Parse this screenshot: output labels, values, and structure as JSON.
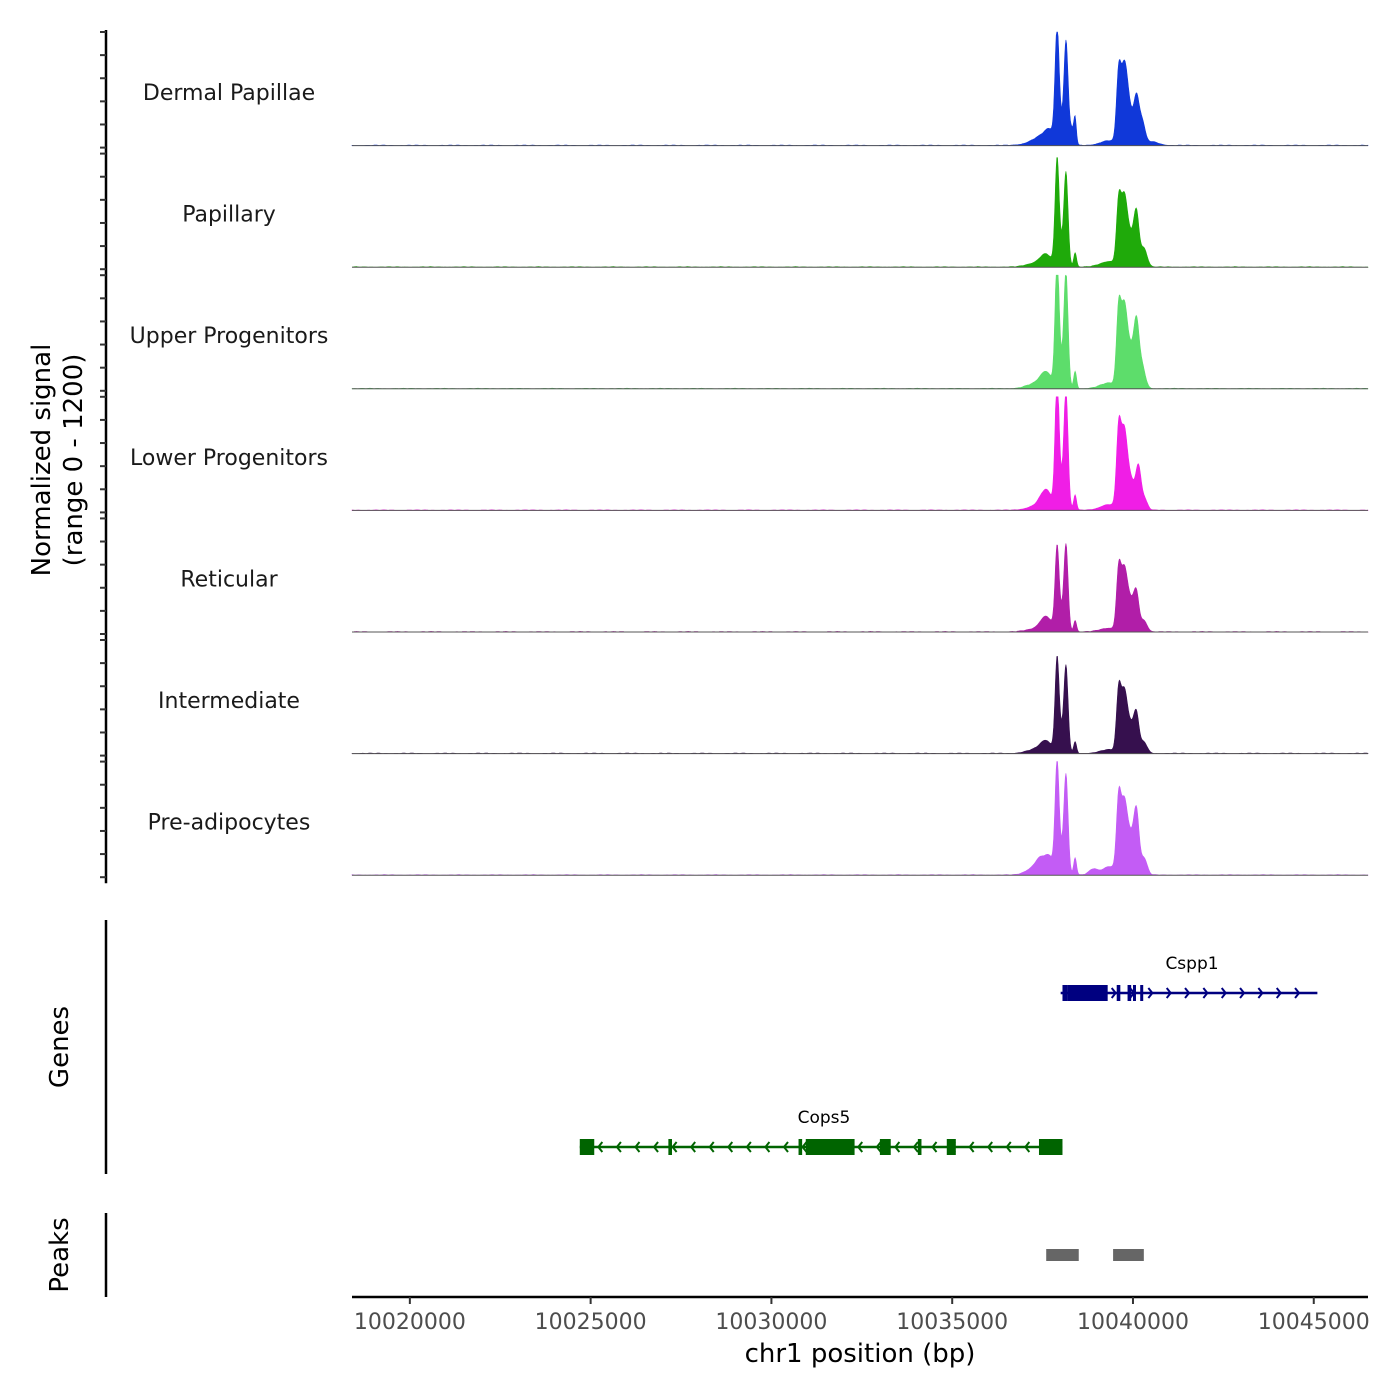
{
  "chart_data": {
    "type": "area",
    "chromosome": "chr1",
    "xlabel": "chr1 position (bp)",
    "ylabel_line1": "Normalized signal",
    "ylabel_line2": "(range 0 - 1200)",
    "ylim": [
      0,
      1200
    ],
    "xlim": [
      10018400,
      10046500
    ],
    "x_ticks": [
      10020000,
      10025000,
      10030000,
      10035000,
      10040000,
      10045000
    ],
    "x_tick_labels": [
      "10020000",
      "10025000",
      "10030000",
      "10035000",
      "10040000",
      "10045000"
    ],
    "series": [
      {
        "name": "Dermal Papillae",
        "color": "#1038d9",
        "peaks": [
          [
            10037200,
            20,
            280
          ],
          [
            10037400,
            40,
            220
          ],
          [
            10037600,
            70,
            200
          ],
          [
            10037700,
            90,
            120
          ],
          [
            10037900,
            1070,
            55
          ],
          [
            10038000,
            240,
            110
          ],
          [
            10038150,
            1000,
            55
          ],
          [
            10038300,
            170,
            70
          ],
          [
            10038400,
            250,
            35
          ],
          [
            10039350,
            50,
            250
          ],
          [
            10039600,
            640,
            60
          ],
          [
            10039750,
            700,
            90
          ],
          [
            10039900,
            350,
            120
          ],
          [
            10040100,
            420,
            70
          ],
          [
            10040250,
            240,
            80
          ],
          [
            10040500,
            40,
            200
          ]
        ]
      },
      {
        "name": "Papillary",
        "color": "#1faa0a",
        "peaks": [
          [
            10037300,
            40,
            250
          ],
          [
            10037600,
            120,
            160
          ],
          [
            10037900,
            1050,
            55
          ],
          [
            10038050,
            240,
            110
          ],
          [
            10038150,
            850,
            55
          ],
          [
            10038400,
            150,
            40
          ],
          [
            10039350,
            60,
            250
          ],
          [
            10039600,
            560,
            60
          ],
          [
            10039750,
            700,
            90
          ],
          [
            10039950,
            300,
            110
          ],
          [
            10040100,
            480,
            70
          ],
          [
            10040300,
            200,
            90
          ]
        ]
      },
      {
        "name": "Upper Progenitors",
        "color": "#5ddd6b",
        "peaks": [
          [
            10037300,
            50,
            250
          ],
          [
            10037600,
            160,
            160
          ],
          [
            10037900,
            1260,
            55
          ],
          [
            10038050,
            280,
            110
          ],
          [
            10038150,
            1050,
            55
          ],
          [
            10038400,
            180,
            40
          ],
          [
            10039350,
            60,
            250
          ],
          [
            10039600,
            700,
            60
          ],
          [
            10039750,
            820,
            90
          ],
          [
            10039950,
            380,
            110
          ],
          [
            10040100,
            560,
            70
          ],
          [
            10040250,
            240,
            90
          ]
        ]
      },
      {
        "name": "Lower Progenitors",
        "color": "#f01ee6",
        "peaks": [
          [
            10037300,
            40,
            250
          ],
          [
            10037600,
            200,
            160
          ],
          [
            10037900,
            1270,
            55
          ],
          [
            10038050,
            300,
            110
          ],
          [
            10038150,
            1080,
            55
          ],
          [
            10038400,
            160,
            40
          ],
          [
            10039350,
            60,
            250
          ],
          [
            10039600,
            720,
            60
          ],
          [
            10039750,
            800,
            90
          ],
          [
            10039950,
            300,
            110
          ],
          [
            10040150,
            400,
            70
          ],
          [
            10040300,
            130,
            90
          ]
        ]
      },
      {
        "name": "Reticular",
        "color": "#b11ea8",
        "peaks": [
          [
            10037300,
            30,
            250
          ],
          [
            10037600,
            150,
            160
          ],
          [
            10037900,
            820,
            55
          ],
          [
            10038050,
            200,
            110
          ],
          [
            10038150,
            800,
            55
          ],
          [
            10038400,
            120,
            40
          ],
          [
            10039350,
            40,
            250
          ],
          [
            10039600,
            550,
            60
          ],
          [
            10039750,
            620,
            90
          ],
          [
            10039950,
            300,
            110
          ],
          [
            10040100,
            320,
            70
          ],
          [
            10040300,
            120,
            90
          ]
        ]
      },
      {
        "name": "Intermediate",
        "color": "#36104e",
        "peaks": [
          [
            10037300,
            40,
            250
          ],
          [
            10037600,
            120,
            160
          ],
          [
            10037900,
            920,
            55
          ],
          [
            10038050,
            230,
            110
          ],
          [
            10038150,
            780,
            55
          ],
          [
            10038400,
            120,
            40
          ],
          [
            10039350,
            40,
            250
          ],
          [
            10039600,
            560,
            60
          ],
          [
            10039750,
            620,
            90
          ],
          [
            10039950,
            270,
            110
          ],
          [
            10040100,
            340,
            70
          ],
          [
            10040300,
            120,
            90
          ]
        ]
      },
      {
        "name": "Pre-adipocytes",
        "color": "#c35cf5",
        "peaks": [
          [
            10037200,
            60,
            200
          ],
          [
            10037450,
            150,
            140
          ],
          [
            10037700,
            170,
            120
          ],
          [
            10037900,
            1080,
            55
          ],
          [
            10038050,
            260,
            110
          ],
          [
            10038150,
            900,
            55
          ],
          [
            10038400,
            180,
            40
          ],
          [
            10038900,
            60,
            120
          ],
          [
            10039350,
            90,
            200
          ],
          [
            10039600,
            680,
            60
          ],
          [
            10039750,
            720,
            90
          ],
          [
            10039950,
            380,
            110
          ],
          [
            10040100,
            560,
            70
          ],
          [
            10040300,
            180,
            90
          ]
        ]
      }
    ],
    "genes": [
      {
        "name": "Cspp1",
        "color": "#000080",
        "strand": "+",
        "start": 10038000,
        "end": 10045100,
        "exons": [
          [
            10038050,
            10038200
          ],
          [
            10038200,
            10039300
          ],
          [
            10039550,
            10039650
          ],
          [
            10039850,
            10039950
          ],
          [
            10040000,
            10040050
          ],
          [
            10040200,
            10040250
          ]
        ]
      },
      {
        "name": "Cops5",
        "color": "#006400",
        "strand": "-",
        "start": 10024700,
        "end": 10038050,
        "exons": [
          [
            10024700,
            10025100
          ],
          [
            10027150,
            10027250
          ],
          [
            10030750,
            10030850
          ],
          [
            10030950,
            10032300
          ],
          [
            10033000,
            10033300
          ],
          [
            10034050,
            10034150
          ],
          [
            10034850,
            10035100
          ],
          [
            10037400,
            10038050
          ]
        ]
      }
    ],
    "genes_label": "Genes",
    "peaks_label": "Peaks",
    "peak_regions": [
      [
        10037600,
        10038500
      ],
      [
        10039450,
        10040300
      ]
    ],
    "peak_color": "#666666"
  }
}
